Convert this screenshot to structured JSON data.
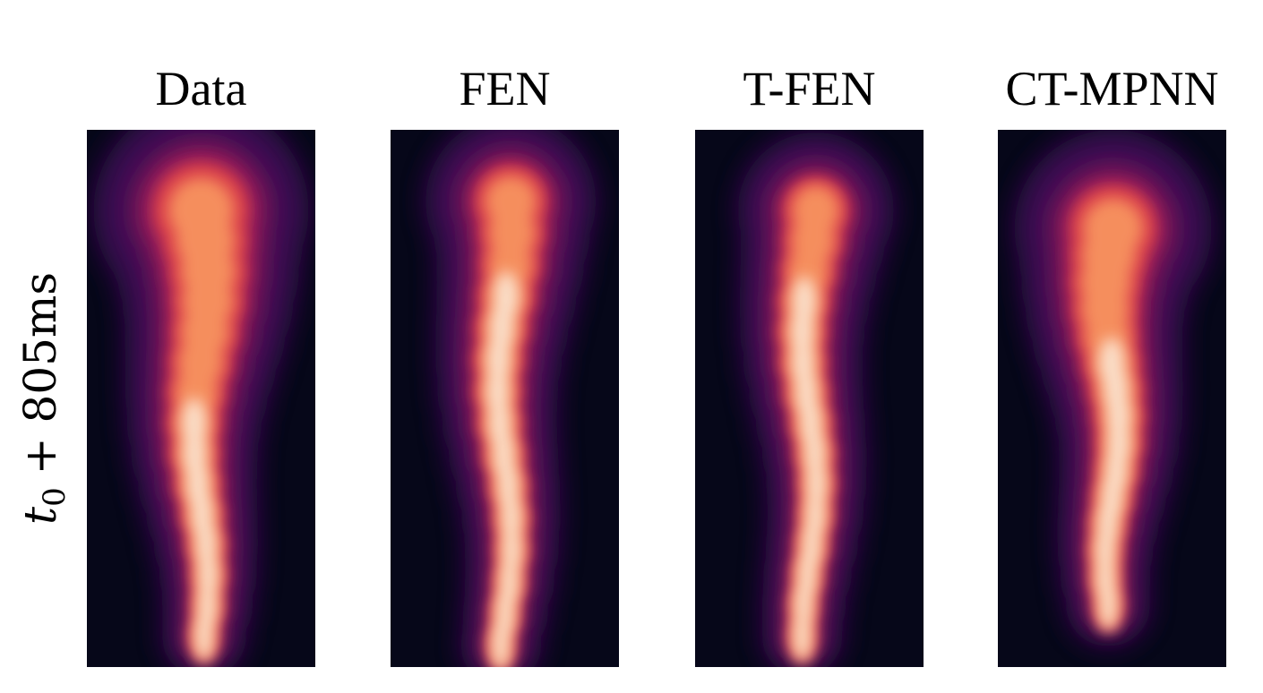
{
  "panels": [
    {
      "title": "Data"
    },
    {
      "title": "FEN"
    },
    {
      "title": "T-FEN"
    },
    {
      "title": "CT-MPNN"
    }
  ],
  "row_label": {
    "base": "t",
    "subscript": "0",
    "rest": "+ 805ms"
  }
}
